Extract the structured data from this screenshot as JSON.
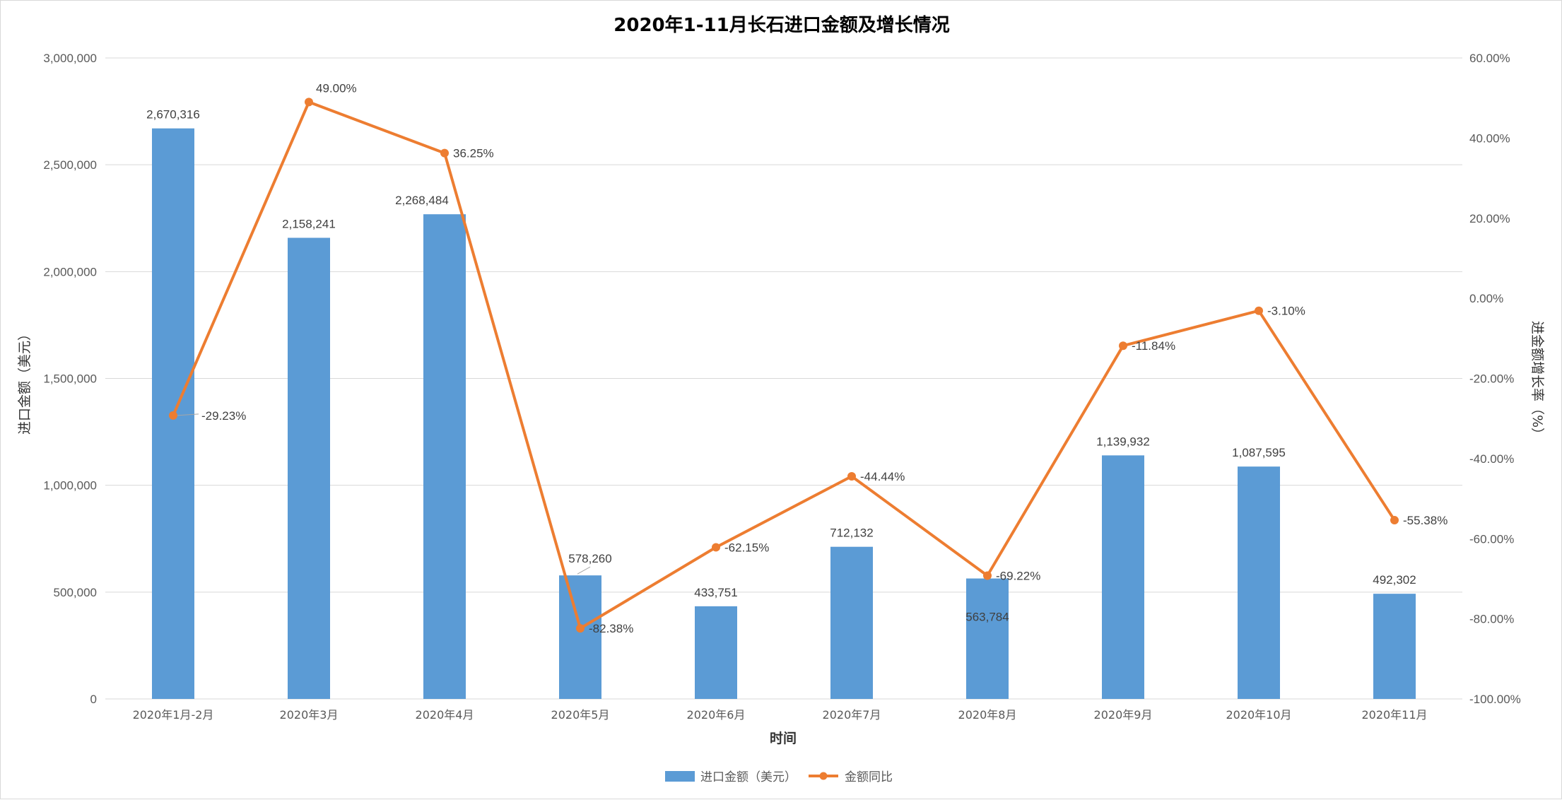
{
  "chart_data": {
    "type": "bar",
    "title": "2020年1-11月长石进口金额及增长情况",
    "xlabel": "时间",
    "ylabel": "进口金额（美元）",
    "y2label": "进金额增长率（%）",
    "categories": [
      "2020年1月-2月",
      "2020年3月",
      "2020年4月",
      "2020年5月",
      "2020年6月",
      "2020年7月",
      "2020年8月",
      "2020年9月",
      "2020年10月",
      "2020年11月"
    ],
    "series": [
      {
        "name": "进口金额（美元）",
        "type": "bar",
        "axis": "left",
        "color": "#5b9bd5",
        "values": [
          2670316,
          2158241,
          2268484,
          578260,
          433751,
          712132,
          563784,
          1139932,
          1087595,
          492302
        ],
        "labels": [
          "2,670,316",
          "2,158,241",
          "2,268,484",
          "578,260",
          "433,751",
          "712,132",
          "563,784",
          "1,139,932",
          "1,087,595",
          "492,302"
        ]
      },
      {
        "name": "金额同比",
        "type": "line",
        "axis": "right",
        "color": "#ed7d31",
        "values": [
          -29.23,
          49.0,
          36.25,
          -82.38,
          -62.15,
          -44.44,
          -69.22,
          -11.84,
          -3.1,
          -55.38
        ],
        "labels": [
          "-29.23%",
          "49.00%",
          "36.25%",
          "-82.38%",
          "-62.15%",
          "-44.44%",
          "-69.22%",
          "-11.84%",
          "-3.10%",
          "-55.38%"
        ]
      }
    ],
    "ylim": [
      0,
      3000000
    ],
    "y2lim": [
      -100,
      60
    ],
    "yticks": [
      0,
      500000,
      1000000,
      1500000,
      2000000,
      2500000,
      3000000
    ],
    "ytick_labels": [
      "0",
      "500,000",
      "1,000,000",
      "1,500,000",
      "2,000,000",
      "2,500,000",
      "3,000,000"
    ],
    "y2ticks": [
      -100,
      -80,
      -60,
      -40,
      -20,
      0,
      20,
      40,
      60
    ],
    "y2tick_labels": [
      "-100.00%",
      "-80.00%",
      "-60.00%",
      "-40.00%",
      "-20.00%",
      "0.00%",
      "20.00%",
      "40.00%",
      "60.00%"
    ],
    "grid": true,
    "legend_position": "bottom-center",
    "gridline_color": "#d9d9d9"
  }
}
